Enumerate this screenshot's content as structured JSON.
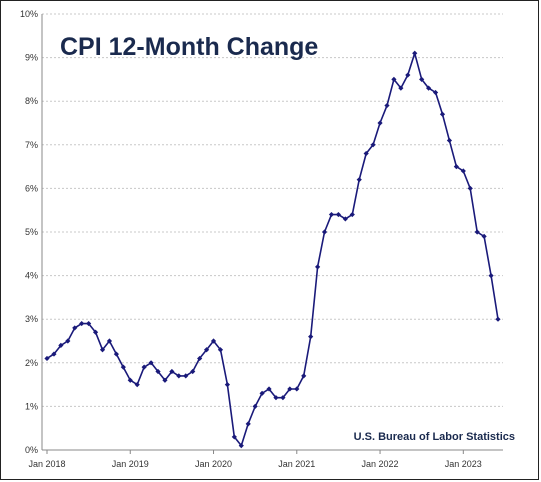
{
  "chart_data": {
    "type": "line",
    "title": "CPI 12-Month Change",
    "source": "U.S. Bureau of Labor Statistics",
    "xlabel": "",
    "ylabel": "",
    "x_start": "2018-01",
    "x_end": "2023-06",
    "x_ticks": [
      {
        "month": "2018-01",
        "label": "Jan 2018"
      },
      {
        "month": "2019-01",
        "label": "Jan 2019"
      },
      {
        "month": "2020-01",
        "label": "Jan 2020"
      },
      {
        "month": "2021-01",
        "label": "Jan 2021"
      },
      {
        "month": "2022-01",
        "label": "Jan 2022"
      },
      {
        "month": "2023-01",
        "label": "Jan 2023"
      }
    ],
    "ylim": [
      0,
      10
    ],
    "y_ticks": [
      {
        "value": 0,
        "label": "0%"
      },
      {
        "value": 1,
        "label": "1%"
      },
      {
        "value": 2,
        "label": "2%"
      },
      {
        "value": 3,
        "label": "3%"
      },
      {
        "value": 4,
        "label": "4%"
      },
      {
        "value": 5,
        "label": "5%"
      },
      {
        "value": 6,
        "label": "6%"
      },
      {
        "value": 7,
        "label": "7%"
      },
      {
        "value": 8,
        "label": "8%"
      },
      {
        "value": 9,
        "label": "9%"
      },
      {
        "value": 10,
        "label": "10%"
      }
    ],
    "grid": true,
    "line_color": "#1a1a7a",
    "series": [
      {
        "x": [
          "2018-01",
          "2018-02",
          "2018-03",
          "2018-04",
          "2018-05",
          "2018-06",
          "2018-07",
          "2018-08",
          "2018-09",
          "2018-10",
          "2018-11",
          "2018-12",
          "2019-01",
          "2019-02",
          "2019-03",
          "2019-04",
          "2019-05",
          "2019-06",
          "2019-07",
          "2019-08",
          "2019-09",
          "2019-10",
          "2019-11",
          "2019-12",
          "2020-01",
          "2020-02",
          "2020-03",
          "2020-04",
          "2020-05",
          "2020-06",
          "2020-07",
          "2020-08",
          "2020-09",
          "2020-10",
          "2020-11",
          "2020-12",
          "2021-01",
          "2021-02",
          "2021-03",
          "2021-04",
          "2021-05",
          "2021-06",
          "2021-07",
          "2021-08",
          "2021-09",
          "2021-10",
          "2021-11",
          "2021-12",
          "2022-01",
          "2022-02",
          "2022-03",
          "2022-04",
          "2022-05",
          "2022-06",
          "2022-07",
          "2022-08",
          "2022-09",
          "2022-10",
          "2022-11",
          "2022-12",
          "2023-01",
          "2023-02",
          "2023-03",
          "2023-04",
          "2023-05",
          "2023-06"
        ],
        "values": [
          2.1,
          2.2,
          2.4,
          2.5,
          2.8,
          2.9,
          2.9,
          2.7,
          2.3,
          2.5,
          2.2,
          1.9,
          1.6,
          1.5,
          1.9,
          2.0,
          1.8,
          1.6,
          1.8,
          1.7,
          1.7,
          1.8,
          2.1,
          2.3,
          2.5,
          2.3,
          1.5,
          0.3,
          0.1,
          0.6,
          1.0,
          1.3,
          1.4,
          1.2,
          1.2,
          1.4,
          1.4,
          1.7,
          2.6,
          4.2,
          5.0,
          5.4,
          5.4,
          5.3,
          5.4,
          6.2,
          6.8,
          7.0,
          7.5,
          7.9,
          8.5,
          8.3,
          8.6,
          9.1,
          8.5,
          8.3,
          8.2,
          7.7,
          7.1,
          6.5,
          6.4,
          6.0,
          5.0,
          4.9,
          4.0,
          3.0
        ]
      }
    ]
  }
}
